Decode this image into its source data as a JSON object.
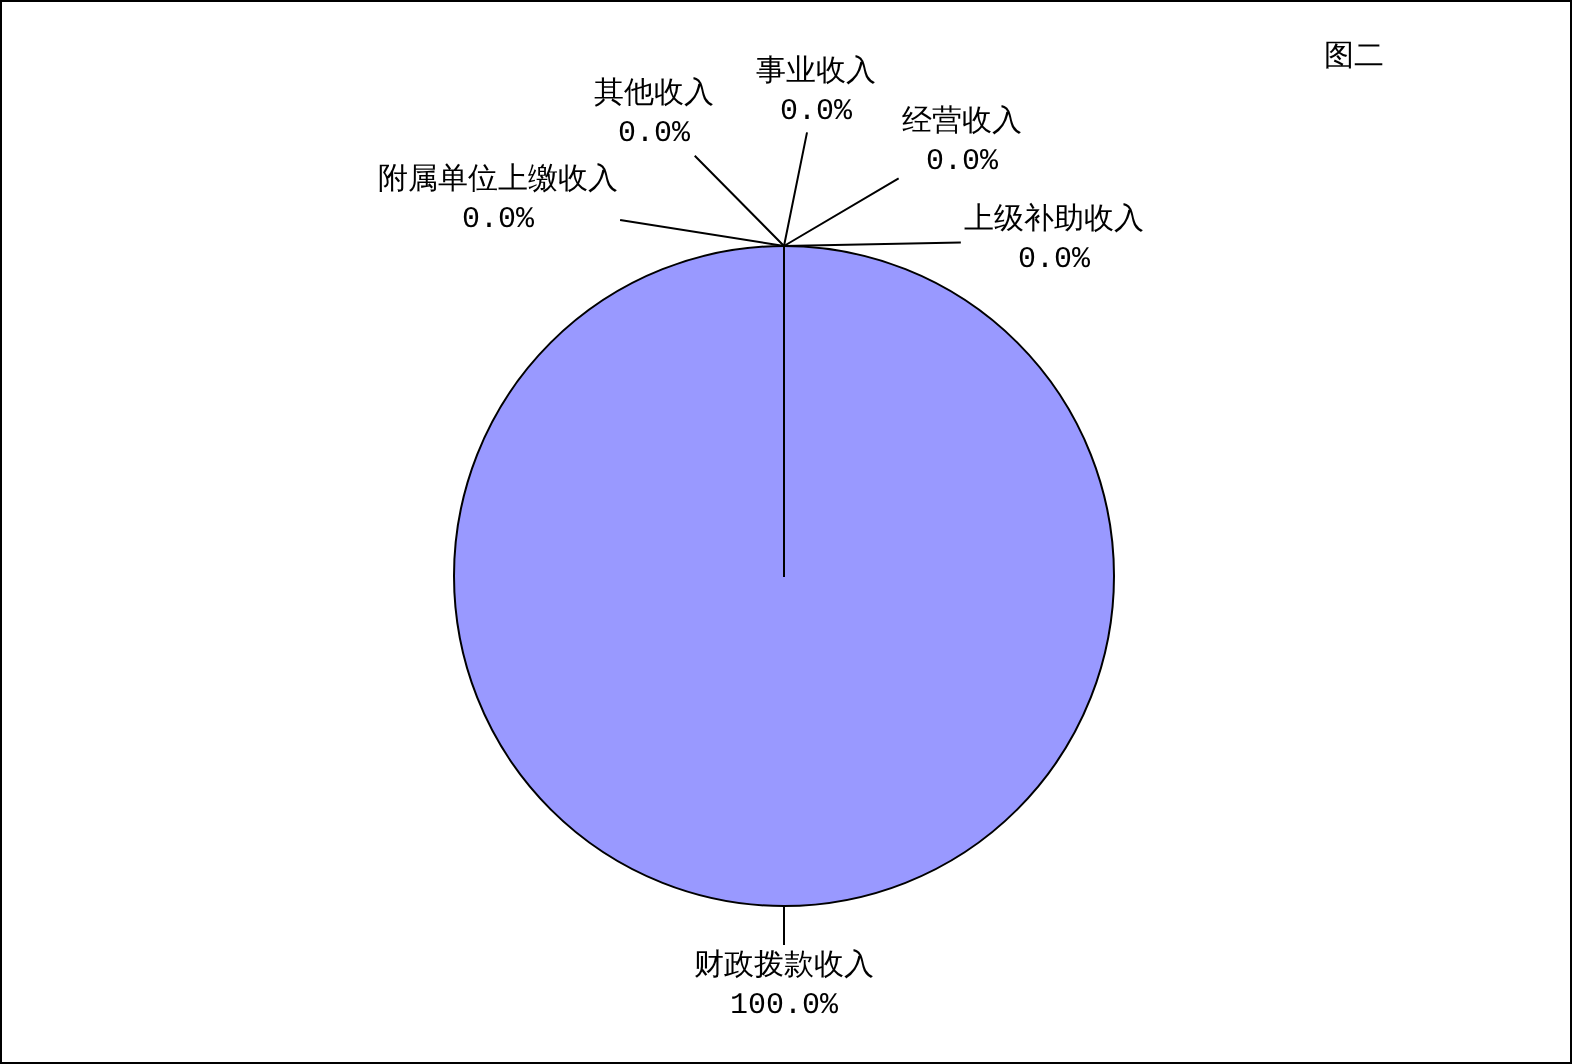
{
  "chart_data": {
    "type": "pie",
    "title": "图二",
    "categories": [
      "财政拨款收入",
      "上级补助收入",
      "经营收入",
      "事业收入",
      "其他收入",
      "附属单位上缴收入"
    ],
    "values": [
      100.0,
      0.0,
      0.0,
      0.0,
      0.0,
      0.0
    ],
    "value_labels": [
      "100.0%",
      "0.0%",
      "0.0%",
      "0.0%",
      "0.0%",
      "0.0%"
    ],
    "colors": [
      "#9999ff",
      "#993366",
      "#ffffcc",
      "#ccffff",
      "#660066",
      "#ff8080"
    ]
  }
}
